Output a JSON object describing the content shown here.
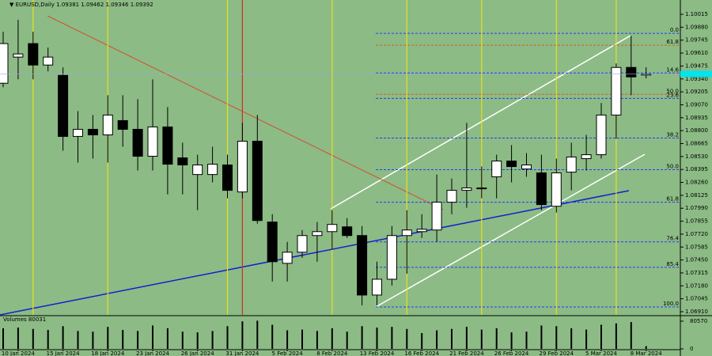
{
  "chart_data": {
    "type": "candlestick",
    "title": "EURUSD,Daily",
    "categories": [
      null,
      "10 Jan 2024",
      null,
      null,
      "15 Jan 2024",
      null,
      null,
      "18 Jan 2024",
      null,
      null,
      "23 Jan 2024",
      null,
      null,
      "26 Jan 2024",
      null,
      null,
      "31 Jan 2024",
      null,
      null,
      "5 Feb 2024",
      null,
      null,
      "8 Feb 2024",
      null,
      null,
      "13 Feb 2024",
      null,
      null,
      "16 Feb 2024",
      null,
      null,
      "21 Feb 2024",
      null,
      null,
      "26 Feb 2024",
      null,
      null,
      "29 Feb 2024",
      null,
      null,
      "5 Mar 2024",
      null,
      null,
      "8 Mar 2024"
    ],
    "open": [
      1.09295,
      1.09568,
      1.09709,
      1.09485,
      1.09377,
      1.0874,
      1.08814,
      1.08756,
      1.08905,
      1.08814,
      1.08533,
      1.08839,
      1.08516,
      1.08342,
      1.08342,
      1.08442,
      1.0816,
      1.0869,
      1.07846,
      1.07415,
      1.07531,
      1.07705,
      1.07746,
      1.07796,
      1.07705,
      1.07084,
      1.07249,
      1.07705,
      1.07746,
      1.07763,
      1.08053,
      1.08177,
      1.08202,
      1.08318,
      1.08483,
      1.084,
      1.08359,
      1.08011,
      1.08367,
      1.08508,
      1.08549,
      1.08963,
      1.0946,
      1.09381
    ],
    "high": [
      1.09833,
      1.09957,
      1.09833,
      1.09667,
      1.0946,
      1.09005,
      1.08963,
      1.0917,
      1.0917,
      1.09129,
      1.09336,
      1.09046,
      1.08674,
      1.08549,
      1.08632,
      1.08549,
      1.08881,
      1.08963,
      1.07928,
      1.07639,
      1.07763,
      1.07846,
      1.0797,
      1.07887,
      1.07804,
      1.07432,
      1.07804,
      1.0797,
      1.07928,
      1.08342,
      1.08301,
      1.08881,
      1.08425,
      1.08549,
      1.08649,
      1.08566,
      1.08549,
      1.08508,
      1.08674,
      1.08756,
      1.09088,
      1.09502,
      1.09791,
      1.09462
    ],
    "low": [
      1.09253,
      1.09336,
      1.09336,
      1.09419,
      1.08591,
      1.08467,
      1.08508,
      1.08467,
      1.08632,
      1.08384,
      1.08384,
      1.08135,
      1.08135,
      1.0797,
      1.0826,
      1.08094,
      1.08094,
      1.07829,
      1.07225,
      1.07225,
      1.07473,
      1.07432,
      1.07556,
      1.0768,
      1.06976,
      1.06976,
      1.07183,
      1.07307,
      1.0768,
      1.07639,
      1.07928,
      1.07995,
      1.08094,
      1.08094,
      1.0826,
      1.08318,
      1.0797,
      1.07945,
      1.08177,
      1.08384,
      1.08508,
      1.08715,
      1.0917,
      1.09346
    ],
    "close": [
      1.09709,
      1.09601,
      1.09485,
      1.09568,
      1.0874,
      1.08814,
      1.08756,
      1.08963,
      1.08814,
      1.08533,
      1.08839,
      1.0845,
      1.08442,
      1.08442,
      1.0845,
      1.08177,
      1.0869,
      1.07862,
      1.07432,
      1.07531,
      1.07705,
      1.07746,
      1.07821,
      1.07705,
      1.07084,
      1.07249,
      1.07705,
      1.07763,
      1.07771,
      1.08053,
      1.08177,
      1.08202,
      1.08193,
      1.08483,
      1.08425,
      1.08442,
      1.08028,
      1.08359,
      1.08525,
      1.08549,
      1.08963,
      1.0946,
      1.09361,
      1.09392
    ],
    "up_color": "#ffffff",
    "down_color": "#000000",
    "ylim": [
      1.06877,
      1.10164
    ],
    "yticks": [
      1.10015,
      {
        "value": 1.0988,
        "label": "1.09880"
      },
      1.09745,
      {
        "value": 1.0961,
        "label": "1.09610"
      },
      1.09475,
      {
        "value": 1.0934,
        "label": "1.09340"
      },
      1.09205,
      {
        "value": 1.0907,
        "label": "1.09070"
      },
      1.08935,
      {
        "value": 1.088,
        "label": "1.08800"
      },
      1.08665,
      {
        "value": 1.0853,
        "label": "1.08530"
      },
      1.08395,
      {
        "value": 1.0826,
        "label": "1.08260"
      },
      1.08125,
      {
        "value": 1.0799,
        "label": "1.07990"
      },
      1.07855,
      {
        "value": 1.0772,
        "label": "1.07720"
      },
      1.07585,
      {
        "value": 1.0745,
        "label": "1.07450"
      },
      1.07315,
      {
        "value": 1.0718,
        "label": "1.07180"
      },
      1.07045,
      {
        "value": 1.0691,
        "label": "1.06910"
      }
    ],
    "levels": [
      {
        "label": "0.0",
        "value": 1.09816,
        "color": "#1e3cff"
      },
      {
        "label": "61.8",
        "value": 1.09692,
        "color": "#d2602a"
      },
      {
        "label": "14.6",
        "value": 1.09402,
        "color": "#1e3cff"
      },
      {
        "label": "50.0",
        "value": 1.09179,
        "color": "#d2602a"
      },
      {
        "label": "23.6",
        "value": 1.09137,
        "color": "#1e3cff"
      },
      {
        "label": "38.2",
        "value": 1.08723,
        "color": "#1e3cff"
      },
      {
        "label": "50.0",
        "value": 1.08392,
        "color": "#1e3cff"
      },
      {
        "label": "61.8",
        "value": 1.08053,
        "color": "#1e3cff"
      },
      {
        "label": "76.4",
        "value": 1.07639,
        "color": "#1e3cff"
      },
      {
        "label": "85.4",
        "value": 1.07374,
        "color": "#1e3cff"
      },
      {
        "label": "100.0",
        "value": 1.0696,
        "color": "#1e3cff"
      }
    ],
    "volume": {
      "title": "Volumes 80031",
      "values": [
        60000,
        62000,
        58000,
        55000,
        66000,
        52000,
        50000,
        64000,
        55000,
        52000,
        68000,
        60000,
        50000,
        48000,
        52000,
        66000,
        80000,
        82000,
        70000,
        54000,
        56000,
        52000,
        60000,
        50000,
        66000,
        62000,
        64000,
        58000,
        46000,
        54000,
        58000,
        64000,
        56000,
        60000,
        48000,
        50000,
        68000,
        66000,
        60000,
        56000,
        70000,
        74000,
        78000,
        8000
      ],
      "ylim": [
        0,
        92000
      ],
      "yticks": [
        80570,
        0
      ]
    }
  }
}
